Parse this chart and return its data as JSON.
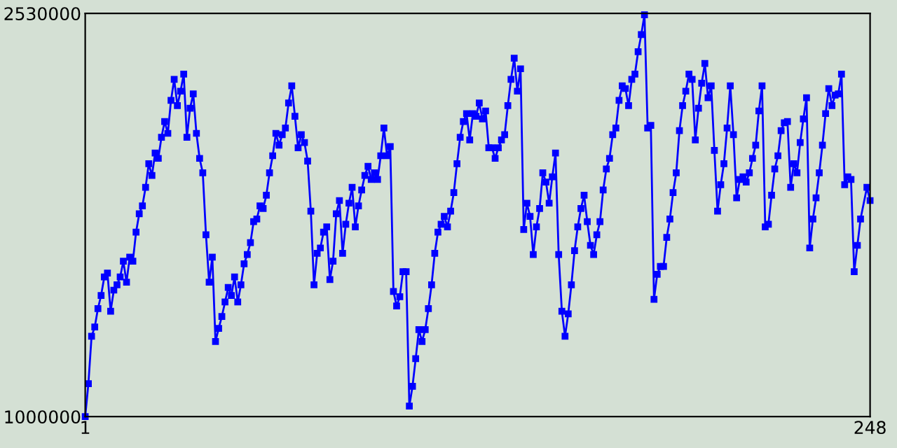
{
  "chart_data": {
    "type": "line",
    "marker": "square",
    "line_style": "solid",
    "grid": false,
    "xlim": [
      1,
      248
    ],
    "xticks": [
      1,
      248
    ],
    "ylim": [
      1000000,
      2530000
    ],
    "yticks": [
      1000000,
      2530000
    ],
    "series": [
      {
        "color": "#0000ff",
        "x": [
          1,
          2,
          3,
          4,
          5,
          6,
          7,
          8,
          9,
          10,
          11,
          12,
          13,
          14,
          15,
          16,
          17,
          18,
          19,
          20,
          21,
          22,
          23,
          24,
          25,
          26,
          27,
          28,
          29,
          30,
          31,
          32,
          33,
          34,
          35,
          36,
          37,
          38,
          39,
          40,
          41,
          42,
          43,
          44,
          45,
          46,
          47,
          48,
          49,
          50,
          51,
          52,
          53,
          54,
          55,
          56,
          57,
          58,
          59,
          60,
          61,
          62,
          63,
          64,
          65,
          66,
          67,
          68,
          69,
          70,
          71,
          72,
          73,
          74,
          75,
          76,
          77,
          78,
          79,
          80,
          81,
          82,
          83,
          84,
          85,
          86,
          87,
          88,
          89,
          90,
          91,
          92,
          93,
          94,
          95,
          96,
          97,
          98,
          99,
          100,
          101,
          102,
          103,
          104,
          105,
          106,
          107,
          108,
          109,
          110,
          111,
          112,
          113,
          114,
          115,
          116,
          117,
          118,
          119,
          120,
          121,
          122,
          123,
          124,
          125,
          126,
          127,
          128,
          129,
          130,
          131,
          132,
          133,
          134,
          135,
          136,
          137,
          138,
          139,
          140,
          141,
          142,
          143,
          144,
          145,
          146,
          147,
          148,
          149,
          150,
          151,
          152,
          153,
          154,
          155,
          156,
          157,
          158,
          159,
          160,
          161,
          162,
          163,
          164,
          165,
          166,
          167,
          168,
          169,
          170,
          171,
          172,
          173,
          174,
          175,
          176,
          177,
          178,
          179,
          180,
          181,
          182,
          183,
          184,
          185,
          186,
          187,
          188,
          189,
          190,
          191,
          192,
          193,
          194,
          195,
          196,
          197,
          198,
          199,
          200,
          201,
          202,
          203,
          204,
          205,
          206,
          207,
          208,
          209,
          210,
          211,
          212,
          213,
          214,
          215,
          216,
          217,
          218,
          219,
          220,
          221,
          222,
          223,
          224,
          225,
          226,
          227,
          228,
          229,
          230,
          231,
          232,
          233,
          234,
          235,
          236,
          237,
          238,
          239,
          240,
          241,
          242,
          243,
          244,
          245,
          247,
          248
        ],
        "values": [
          1000000,
          1125000,
          1305000,
          1340000,
          1410000,
          1460000,
          1530000,
          1545000,
          1400000,
          1480000,
          1500000,
          1530000,
          1590000,
          1510000,
          1605000,
          1590000,
          1700000,
          1770000,
          1800000,
          1870000,
          1960000,
          1915000,
          2000000,
          1980000,
          2060000,
          2120000,
          2075000,
          2200000,
          2280000,
          2180000,
          2235000,
          2300000,
          2060000,
          2170000,
          2225000,
          2075000,
          1980000,
          1925000,
          1690000,
          1510000,
          1605000,
          1285000,
          1335000,
          1380000,
          1435000,
          1490000,
          1460000,
          1530000,
          1435000,
          1500000,
          1580000,
          1615000,
          1660000,
          1740000,
          1750000,
          1800000,
          1790000,
          1840000,
          1925000,
          1990000,
          2075000,
          2030000,
          2070000,
          2095000,
          2190000,
          2255000,
          2140000,
          2020000,
          2070000,
          2040000,
          1970000,
          1780000,
          1500000,
          1620000,
          1640000,
          1700000,
          1720000,
          1520000,
          1590000,
          1770000,
          1820000,
          1620000,
          1730000,
          1810000,
          1870000,
          1720000,
          1800000,
          1860000,
          1915000,
          1950000,
          1900000,
          1925000,
          1900000,
          1990000,
          2095000,
          1990000,
          2025000,
          1475000,
          1420000,
          1455000,
          1550000,
          1550000,
          1040000,
          1115000,
          1220000,
          1330000,
          1285000,
          1330000,
          1410000,
          1500000,
          1620000,
          1700000,
          1730000,
          1760000,
          1720000,
          1780000,
          1850000,
          1960000,
          2060000,
          2120000,
          2150000,
          2050000,
          2150000,
          2140000,
          2190000,
          2130000,
          2160000,
          2020000,
          2020000,
          1980000,
          2020000,
          2050000,
          2070000,
          2180000,
          2280000,
          2360000,
          2235000,
          2320000,
          1710000,
          1810000,
          1760000,
          1615000,
          1720000,
          1790000,
          1925000,
          1890000,
          1810000,
          1910000,
          2000000,
          1615000,
          1400000,
          1305000,
          1390000,
          1500000,
          1630000,
          1720000,
          1790000,
          1840000,
          1740000,
          1650000,
          1615000,
          1690000,
          1740000,
          1860000,
          1940000,
          1980000,
          2070000,
          2095000,
          2200000,
          2255000,
          2245000,
          2180000,
          2280000,
          2300000,
          2385000,
          2450000,
          2525000,
          2095000,
          2105000,
          1445000,
          1540000,
          1570000,
          1570000,
          1680000,
          1750000,
          1850000,
          1925000,
          2085000,
          2180000,
          2235000,
          2300000,
          2280000,
          2050000,
          2170000,
          2265000,
          2340000,
          2210000,
          2255000,
          2010000,
          1780000,
          1880000,
          1960000,
          2095000,
          2255000,
          2070000,
          1830000,
          1900000,
          1910000,
          1890000,
          1925000,
          1980000,
          2030000,
          2160000,
          2255000,
          1720000,
          1730000,
          1840000,
          1940000,
          1990000,
          2085000,
          2115000,
          2120000,
          1870000,
          1960000,
          1925000,
          2040000,
          2130000,
          2210000,
          1640000,
          1750000,
          1830000,
          1925000,
          2030000,
          2150000,
          2245000,
          2180000,
          2220000,
          2225000,
          2300000,
          1880000,
          1910000,
          1900000,
          1550000,
          1650000,
          1750000,
          1870000,
          1820000
        ]
      }
    ]
  }
}
